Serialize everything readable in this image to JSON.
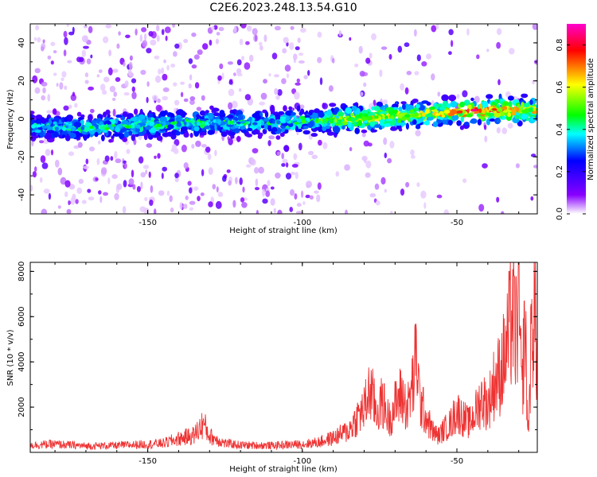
{
  "title": "C2E6.2023.248.13.54.G10",
  "colors": {
    "snr_line": "#ee3333",
    "axis": "#000000"
  },
  "chart_data": [
    {
      "type": "heatmap",
      "xlabel": "Height of straight line (km)",
      "ylabel": "Frequency (Hz)",
      "xlim": [
        -188,
        -24
      ],
      "ylim": [
        -50,
        50
      ],
      "x_ticks": [
        -150,
        -100,
        -50
      ],
      "y_ticks": [
        -40,
        -20,
        0,
        20,
        40
      ],
      "colorbar": {
        "label": "Normalized spectral amplitude",
        "range": [
          0,
          0.9
        ],
        "ticks": [
          0.0,
          0.2,
          0.4,
          0.6,
          0.8
        ],
        "colormap": [
          "#ffffff",
          "#8800ff",
          "#0000ff",
          "#00ffff",
          "#00ff00",
          "#ffff00",
          "#ff0000",
          "#ff00cc"
        ]
      },
      "ridge": [
        {
          "x": -188,
          "f": -4,
          "amp": 0.35
        },
        {
          "x": -170,
          "f": -5,
          "amp": 0.4
        },
        {
          "x": -150,
          "f": -3,
          "amp": 0.42
        },
        {
          "x": -130,
          "f": -2,
          "amp": 0.4
        },
        {
          "x": -110,
          "f": -2,
          "amp": 0.38
        },
        {
          "x": -95,
          "f": -1,
          "amp": 0.45
        },
        {
          "x": -85,
          "f": 0,
          "amp": 0.55
        },
        {
          "x": -75,
          "f": 1,
          "amp": 0.6
        },
        {
          "x": -65,
          "f": 2,
          "amp": 0.55
        },
        {
          "x": -55,
          "f": 3,
          "amp": 0.6
        },
        {
          "x": -45,
          "f": 4,
          "amp": 0.75
        },
        {
          "x": -35,
          "f": 5,
          "amp": 0.7
        },
        {
          "x": -24,
          "f": 4,
          "amp": 0.6
        }
      ]
    },
    {
      "type": "line",
      "xlabel": "Height of straight line (km)",
      "ylabel": "SNR (10 * v/v)",
      "xlim": [
        -188,
        -24
      ],
      "ylim": [
        0,
        8400
      ],
      "x_ticks": [
        -150,
        -100,
        -50
      ],
      "y_ticks": [
        2000,
        4000,
        6000,
        8000
      ],
      "series": [
        {
          "x": [
            -188,
            -180,
            -170,
            -160,
            -150,
            -145,
            -140,
            -135,
            -132,
            -130,
            -125,
            -120,
            -110,
            -100,
            -95,
            -90,
            -85,
            -82,
            -80,
            -78,
            -76,
            -74,
            -72,
            -70,
            -68,
            -66,
            -64,
            -63,
            -62,
            -60,
            -58,
            -56,
            -54,
            -52,
            -50,
            -48,
            -46,
            -44,
            -42,
            -40,
            -38,
            -36,
            -34,
            -32,
            -31,
            -30,
            -29,
            -28,
            -27,
            -26,
            -25,
            -24
          ],
          "values": [
            400,
            450,
            350,
            380,
            450,
            500,
            750,
            950,
            1600,
            900,
            500,
            400,
            380,
            450,
            550,
            800,
            1200,
            2000,
            2400,
            3500,
            2200,
            2800,
            1800,
            2600,
            3200,
            2400,
            4000,
            5500,
            2800,
            2000,
            1200,
            900,
            1300,
            1600,
            2300,
            1900,
            1600,
            2200,
            3000,
            2600,
            3800,
            4400,
            5600,
            7800,
            6500,
            8400,
            3000,
            7500,
            800,
            6000,
            8200,
            4600
          ]
        }
      ]
    }
  ]
}
